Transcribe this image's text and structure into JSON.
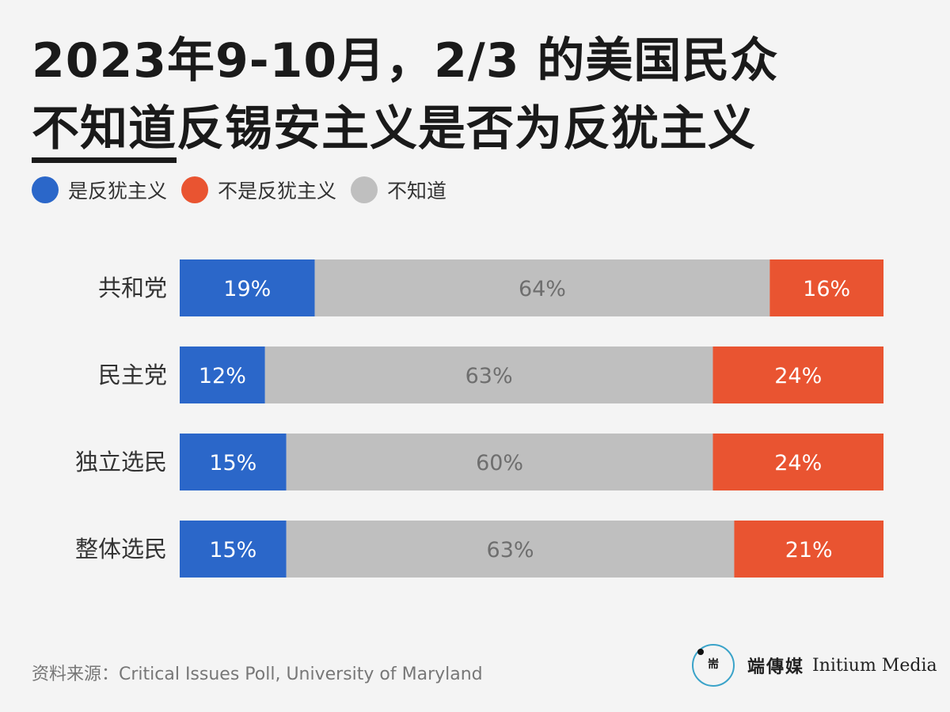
{
  "title": {
    "line1": "2023年9-10月，2/3 的美国民众",
    "emph": "不知道",
    "line2_rest": "反锡安主义是否为反犹主义"
  },
  "colors": {
    "yes": "#2b67c9",
    "no": "#e95431",
    "unknown": "#bfbfbf",
    "yes_text": "#ffffff",
    "no_text": "#ffffff",
    "unknown_text": "#6e6e6e"
  },
  "legend": [
    {
      "label": "是反犹主义",
      "color": "#2b67c9"
    },
    {
      "label": "不是反犹主义",
      "color": "#e95431"
    },
    {
      "label": "不知道",
      "color": "#bfbfbf"
    }
  ],
  "chart_data": {
    "type": "bar",
    "orientation": "horizontal-stacked-100",
    "categories": [
      "共和党",
      "民主党",
      "独立选民",
      "整体选民"
    ],
    "series": [
      {
        "name": "是反犹主义",
        "values": [
          19,
          12,
          15,
          15
        ],
        "labels": [
          "19%",
          "12%",
          "15%",
          "15%"
        ]
      },
      {
        "name": "不知道",
        "values": [
          64,
          63,
          60,
          63
        ],
        "labels": [
          "64%",
          "63%",
          "60%",
          "63%"
        ]
      },
      {
        "name": "不是反犹主义",
        "values": [
          16,
          24,
          24,
          21
        ],
        "labels": [
          "16%",
          "24%",
          "24%",
          "21%"
        ]
      }
    ],
    "grid": false,
    "legend_position": "top-left"
  },
  "footer": {
    "source": "资料来源：Critical Issues Poll, University of Maryland",
    "brand_cn": "端傳媒",
    "brand_en": "Initium Media",
    "brand_logo_glyph": "耑"
  }
}
